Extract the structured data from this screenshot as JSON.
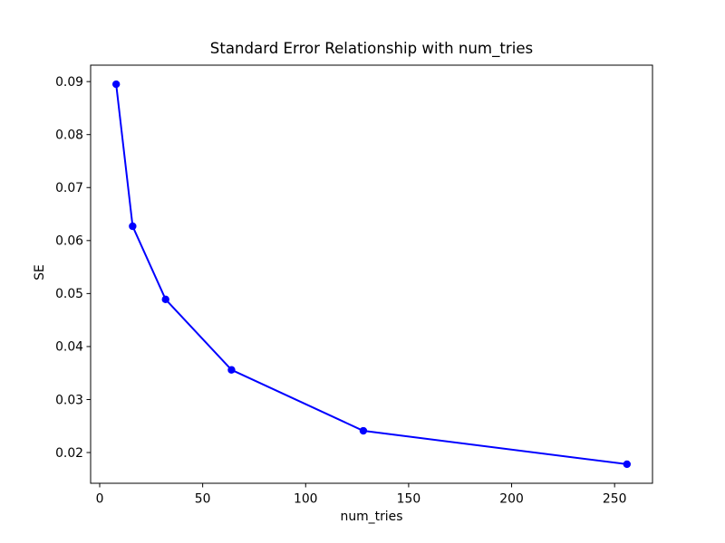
{
  "figure": {
    "background": "#ffffff"
  },
  "chart_data": {
    "type": "line",
    "title": "Standard Error Relationship with num_tries",
    "xlabel": "num_tries",
    "ylabel": "SE",
    "x": [
      8,
      16,
      32,
      64,
      128,
      256
    ],
    "y": [
      0.0895,
      0.0627,
      0.0489,
      0.0356,
      0.0241,
      0.0178
    ],
    "line_color": "#0000ff",
    "marker": "o",
    "marker_color": "#0000ff",
    "x_ticks": [
      0,
      50,
      100,
      150,
      200,
      250
    ],
    "x_tick_labels": [
      "0",
      "50",
      "100",
      "150",
      "200",
      "250"
    ],
    "y_ticks": [
      0.02,
      0.03,
      0.04,
      0.05,
      0.06,
      0.07,
      0.08,
      0.09
    ],
    "y_tick_labels": [
      "0.02",
      "0.03",
      "0.04",
      "0.05",
      "0.06",
      "0.07",
      "0.08",
      "0.09"
    ],
    "xlim": [
      -4.4,
      268.4
    ],
    "ylim": [
      0.0142,
      0.0931
    ],
    "grid": false,
    "legend": null,
    "axis_color": "#000000"
  }
}
